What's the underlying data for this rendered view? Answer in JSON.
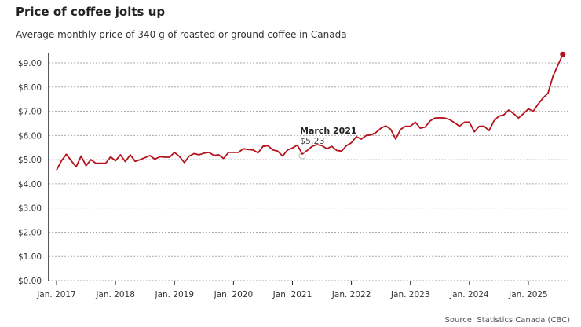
{
  "chart_data": {
    "type": "line",
    "title": "Price of coffee jolts up",
    "subtitle": "Average monthly price of 340 g of roasted or ground coffee in Canada",
    "source": "Source: Statistics Canada (CBC)",
    "x_start": "2017-01",
    "x_frequency": "monthly",
    "x_tick_labels": [
      "Jan. 2017",
      "Jan. 2018",
      "Jan. 2019",
      "Jan. 2020",
      "Jan. 2021",
      "Jan. 2022",
      "Jan. 2023",
      "Jan. 2024",
      "Jan. 2025"
    ],
    "y_tick_labels": [
      "$0.00",
      "$1.00",
      "$2.00",
      "$3.00",
      "$4.00",
      "$5.00",
      "$6.00",
      "$7.00",
      "$8.00",
      "$9.00"
    ],
    "ylim": [
      0,
      9
    ],
    "grid": "horizontal dotted",
    "line_color": "#b5121b",
    "annotation": {
      "label": "March 2021",
      "value": "$5.23"
    },
    "values": [
      4.57,
      4.95,
      5.22,
      4.95,
      4.7,
      5.15,
      4.75,
      5.0,
      4.85,
      4.85,
      4.85,
      5.12,
      4.95,
      5.2,
      4.92,
      5.2,
      4.93,
      5.0,
      5.08,
      5.17,
      5.02,
      5.12,
      5.1,
      5.1,
      5.3,
      5.13,
      4.88,
      5.15,
      5.25,
      5.2,
      5.27,
      5.3,
      5.18,
      5.2,
      5.05,
      5.3,
      5.3,
      5.3,
      5.45,
      5.42,
      5.4,
      5.28,
      5.55,
      5.58,
      5.4,
      5.35,
      5.15,
      5.4,
      5.48,
      5.6,
      5.23,
      5.38,
      5.55,
      5.62,
      5.58,
      5.45,
      5.55,
      5.38,
      5.35,
      5.58,
      5.7,
      5.95,
      5.85,
      6.0,
      6.02,
      6.12,
      6.3,
      6.4,
      6.25,
      5.85,
      6.25,
      6.38,
      6.38,
      6.55,
      6.3,
      6.35,
      6.6,
      6.72,
      6.73,
      6.72,
      6.65,
      6.52,
      6.38,
      6.55,
      6.55,
      6.15,
      6.38,
      6.38,
      6.2,
      6.6,
      6.8,
      6.85,
      7.05,
      6.9,
      6.72,
      6.9,
      7.1,
      7.0,
      7.3,
      7.55,
      7.75,
      8.45,
      8.9,
      9.35
    ]
  }
}
